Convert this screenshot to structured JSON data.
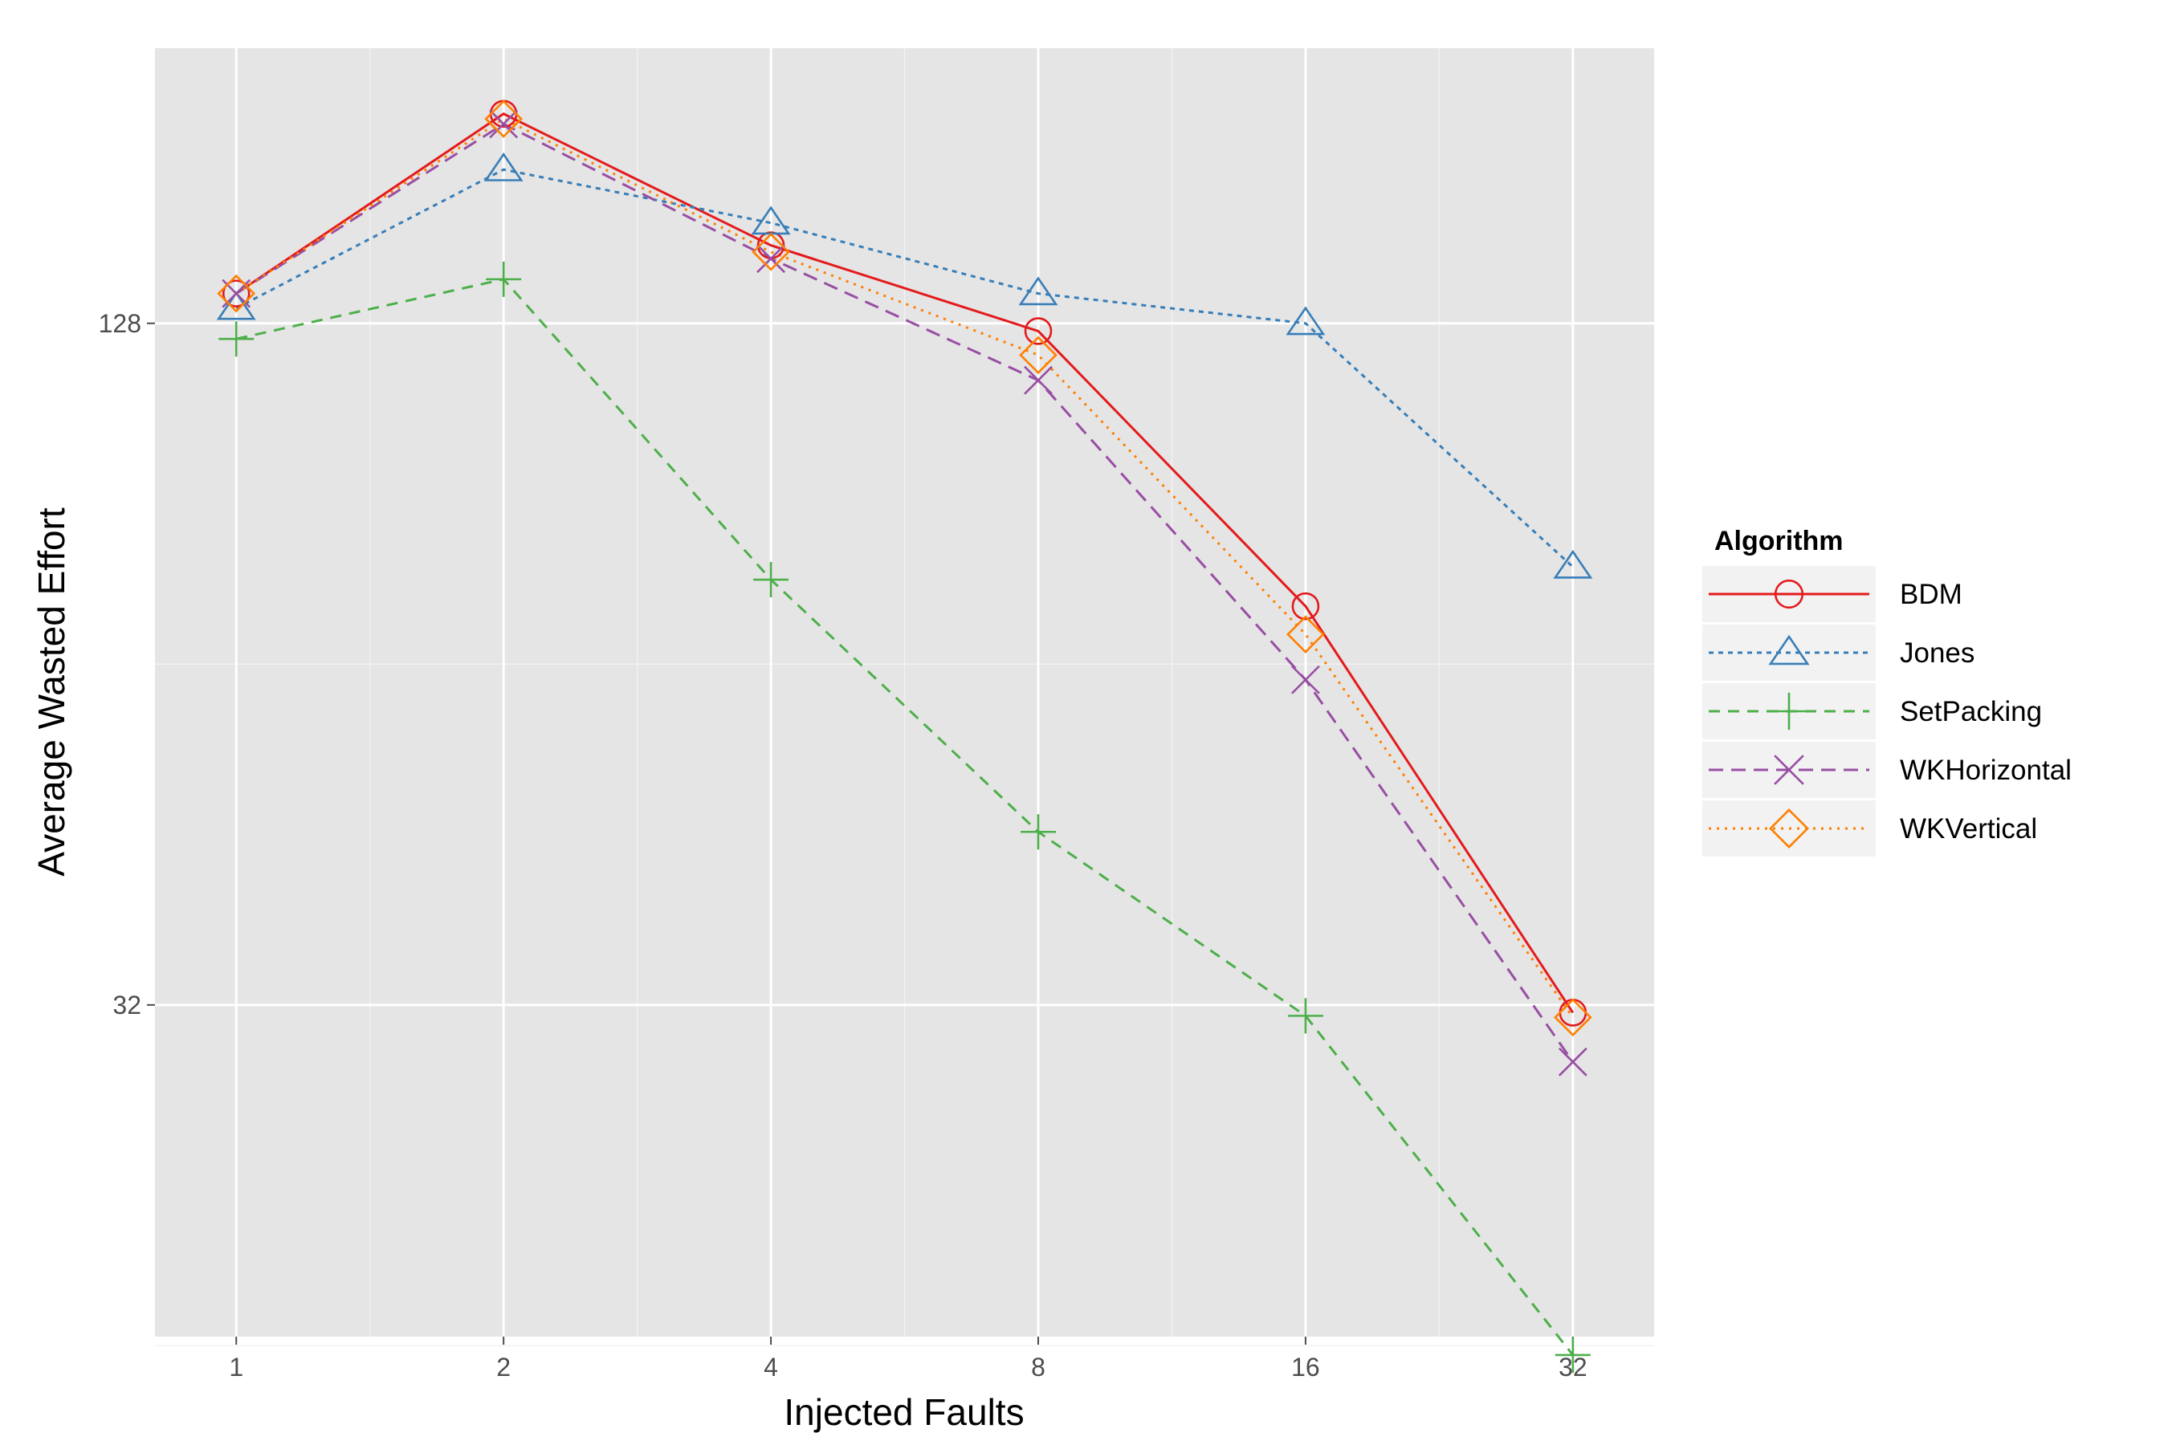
{
  "chart_data": {
    "type": "line",
    "xlabel": "Injected Faults",
    "ylabel": "Average Wasted Effort",
    "x": [
      1,
      2,
      4,
      8,
      16,
      32
    ],
    "x_scale": "log2",
    "y_scale": "log2",
    "xlim": [
      0.81,
      39.5
    ],
    "ylim": [
      16.3,
      224
    ],
    "x_ticks": [
      1,
      2,
      4,
      8,
      16,
      32
    ],
    "x_tick_labels": [
      "1",
      "2",
      "4",
      "8",
      "16",
      "32"
    ],
    "y_ticks": [
      32,
      128
    ],
    "y_tick_labels": [
      "32",
      "128"
    ],
    "y_minor_ticks": [
      16,
      64,
      256
    ],
    "grid": true,
    "legend_title": "Algorithm",
    "legend_position": "right",
    "series": [
      {
        "name": "BDM",
        "values": [
          136,
          196,
          150,
          126,
          72,
          31.5
        ],
        "color": "#e41a1c",
        "marker": "circle",
        "dash": "solid"
      },
      {
        "name": "Jones",
        "values": [
          132,
          175,
          157,
          136,
          128,
          78
        ],
        "color": "#377eb8",
        "marker": "triangle",
        "dash": "dotted"
      },
      {
        "name": "SetPacking",
        "values": [
          124,
          140,
          76,
          45.5,
          31.3,
          15.7
        ],
        "color": "#4daf4a",
        "marker": "plus",
        "dash": "dashed"
      },
      {
        "name": "WKHorizontal",
        "values": [
          136,
          192,
          146,
          114,
          62,
          28.5
        ],
        "color": "#984ea3",
        "marker": "x",
        "dash": "longdash"
      },
      {
        "name": "WKVertical",
        "values": [
          136,
          194,
          148,
          120,
          68,
          31.2
        ],
        "color": "#ff7f00",
        "marker": "diamond",
        "dash": "dotted-fine"
      }
    ]
  }
}
